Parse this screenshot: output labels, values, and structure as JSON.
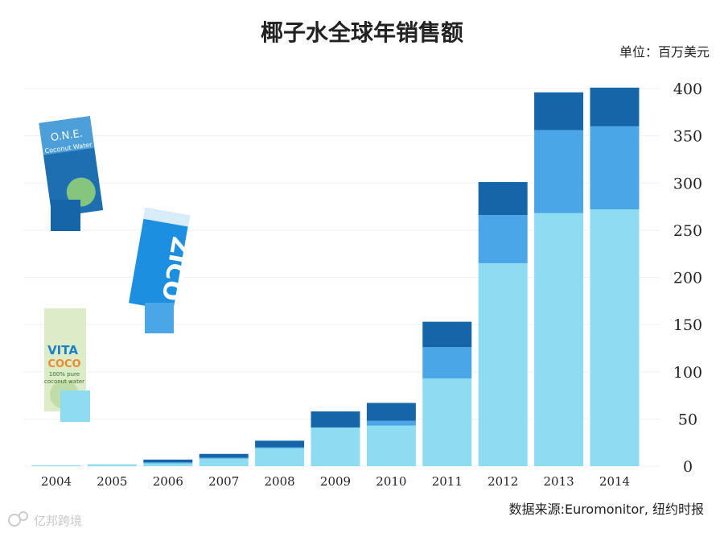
{
  "chart_data": {
    "type": "bar",
    "stacked": true,
    "title": "椰子水全球年销售额",
    "unit_label": "单位：百万美元",
    "xlabel": "",
    "ylabel": "",
    "ylim": [
      0,
      400
    ],
    "yticks": [
      0,
      50,
      100,
      150,
      200,
      250,
      300,
      350,
      400
    ],
    "y_axis_side": "right",
    "grid": true,
    "categories": [
      "2004",
      "2005",
      "2006",
      "2007",
      "2008",
      "2009",
      "2010",
      "2011",
      "2012",
      "2013",
      "2014"
    ],
    "series": [
      {
        "brand": "Vita Coco",
        "color": "#8ddcf2",
        "values": [
          1,
          2,
          3,
          8,
          19,
          41,
          43,
          93,
          215,
          268,
          272
        ]
      },
      {
        "brand": "ZICO",
        "color": "#4aa6e6",
        "values": [
          0,
          0,
          1,
          1,
          1,
          0,
          5,
          33,
          51,
          88,
          88
        ]
      },
      {
        "brand": "O.N.E.",
        "color": "#1565a8",
        "values": [
          0,
          0,
          3,
          4,
          7,
          17,
          19,
          27,
          35,
          40,
          41
        ]
      }
    ],
    "legend": "images-left",
    "legend_images": [
      {
        "brand": "O.N.E.",
        "text": [
          "O.N.E.",
          "Coconut Water"
        ]
      },
      {
        "brand": "ZICO",
        "text": [
          "ZICO"
        ]
      },
      {
        "brand": "Vita Coco",
        "text": [
          "VITA",
          "COCO",
          "100% pure",
          "coconut water"
        ]
      }
    ],
    "source": "数据来源:Euromonitor, 纽约时报"
  },
  "watermark": "亿邦跨境"
}
